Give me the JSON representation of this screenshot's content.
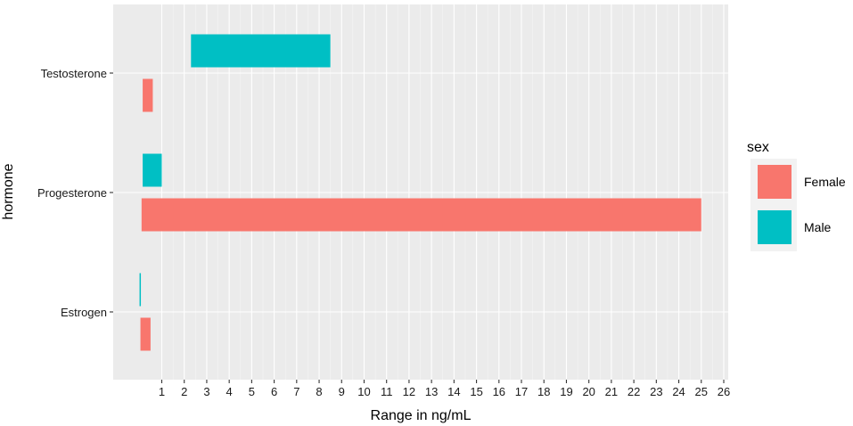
{
  "chart_data": {
    "type": "bar",
    "orientation": "horizontal",
    "chart_style": "floating range bars (min to max) on ggplot grey panel",
    "xlabel": "Range in ng/mL",
    "ylabel": "hormone",
    "categories": [
      "Estrogen",
      "Progesterone",
      "Testosterone"
    ],
    "x_tick_labels": [
      "1",
      "2",
      "3",
      "4",
      "5",
      "6",
      "7",
      "8",
      "9",
      "10",
      "11",
      "12",
      "13",
      "14",
      "15",
      "16",
      "17",
      "18",
      "19",
      "20",
      "21",
      "22",
      "23",
      "24",
      "25",
      "26"
    ],
    "legend": {
      "title": "sex",
      "position": "right",
      "entries": [
        {
          "name": "Female",
          "color": "#F8766D"
        },
        {
          "name": "Male",
          "color": "#00BFC4"
        }
      ]
    },
    "series": [
      {
        "name": "Female",
        "color": "#F8766D",
        "ranges": [
          {
            "category": "Estrogen",
            "min": 0.05,
            "max": 0.5
          },
          {
            "category": "Progesterone",
            "min": 0.1,
            "max": 25
          },
          {
            "category": "Testosterone",
            "min": 0.15,
            "max": 0.6
          }
        ]
      },
      {
        "name": "Male",
        "color": "#00BFC4",
        "ranges": [
          {
            "category": "Estrogen",
            "min": 0.01,
            "max": 0.06
          },
          {
            "category": "Progesterone",
            "min": 0.15,
            "max": 1
          },
          {
            "category": "Testosterone",
            "min": 2.3,
            "max": 8.5
          }
        ]
      }
    ],
    "panel_background": "#EBEBEB",
    "grid": true
  }
}
